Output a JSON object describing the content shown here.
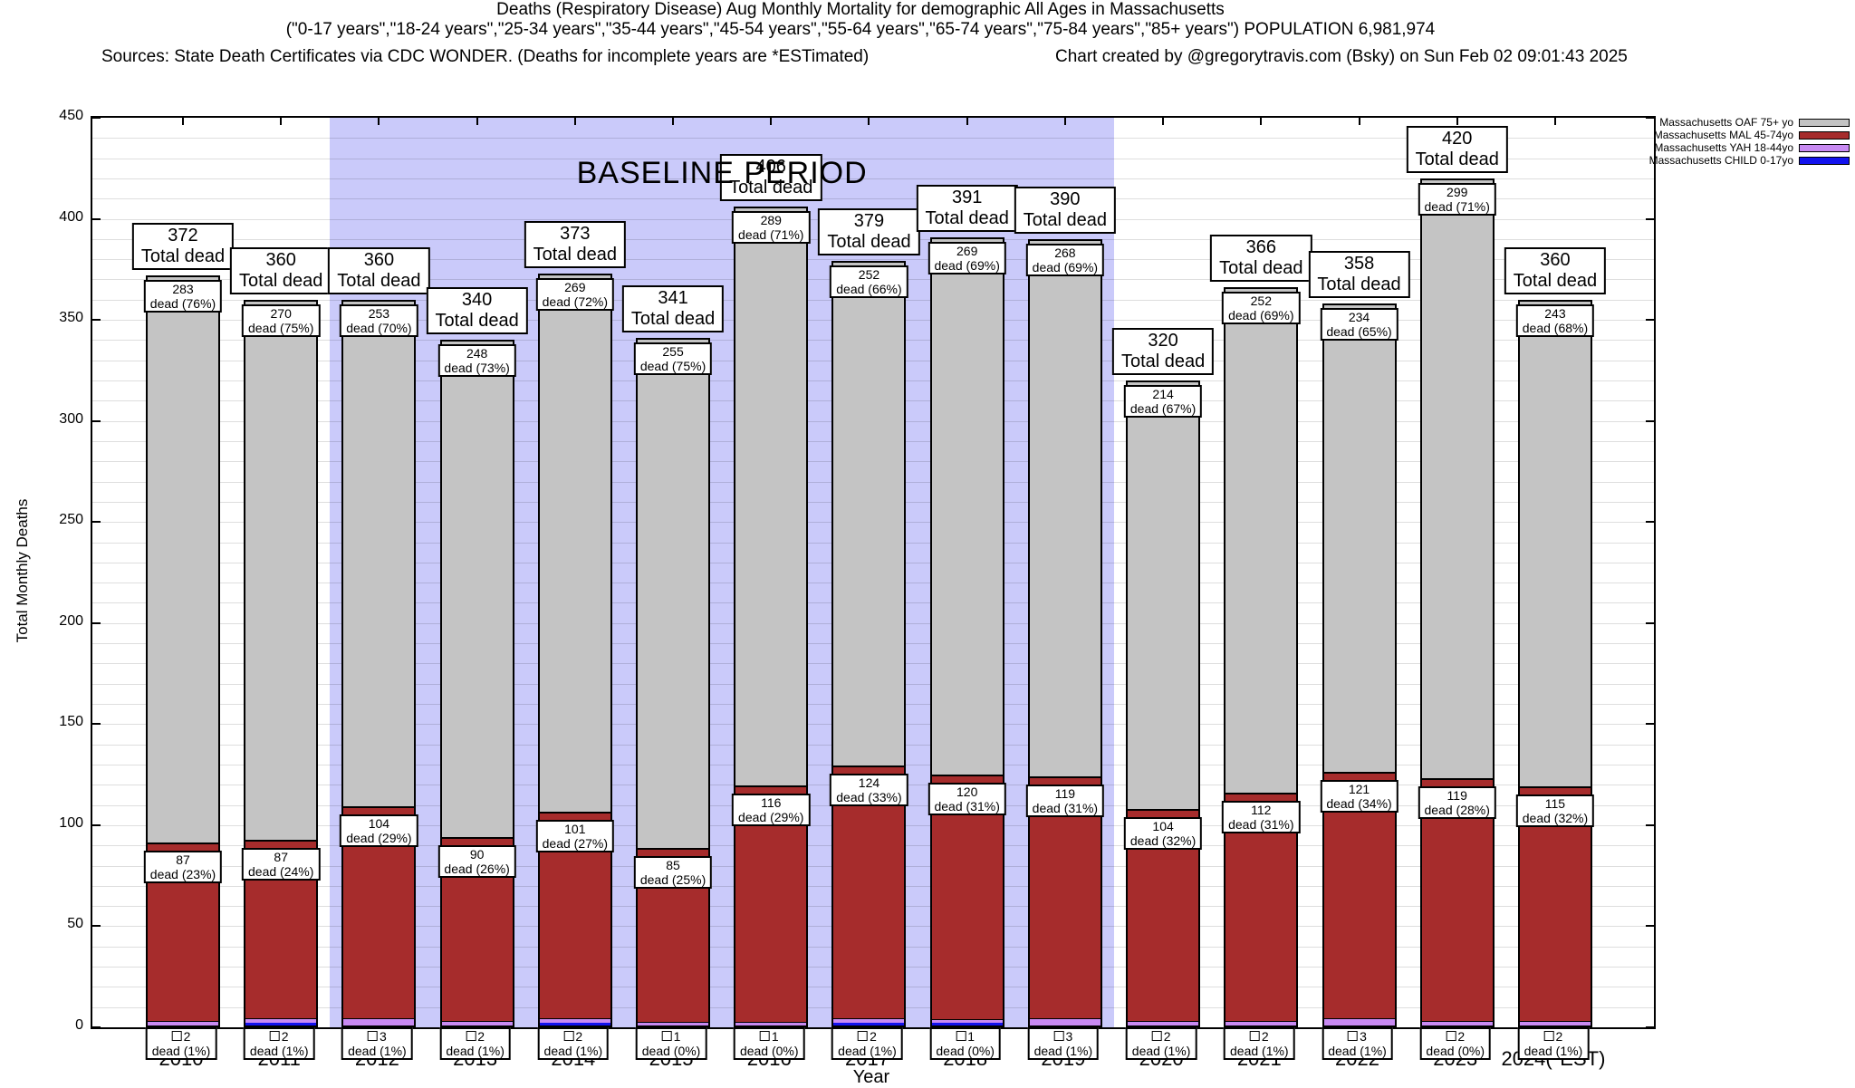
{
  "title": {
    "line1": "Deaths (Respiratory Disease) Aug Monthly Mortality for demographic All Ages in Massachusetts",
    "line2": "(\"0-17 years\",\"18-24 years\",\"25-34 years\",\"35-44 years\",\"45-54 years\",\"55-64 years\",\"65-74 years\",\"75-84 years\",\"85+ years\") POPULATION 6,981,974",
    "line3_sources": "Sources: State Death Certificates via CDC WONDER. (Deaths for incomplete years are *ESTimated)",
    "line3_credit": "Chart created by @gregorytravis.com (Bsky) on Sun Feb 02 09:01:43 2025"
  },
  "axes": {
    "ylabel": "Total Monthly Deaths",
    "xlabel": "Year",
    "ymin": 0,
    "ymax": 450,
    "ytick_step": 50,
    "grid_step": 10
  },
  "baseline": {
    "label": "BASELINE PERIOD",
    "start_category": "2012",
    "end_category": "2019",
    "color": "#cacafa"
  },
  "legend": {
    "items": [
      {
        "label": "Massachusetts OAF 75+ yo",
        "color": "#c4c4c4"
      },
      {
        "label": "Massachusetts MAL 45-74yo",
        "color": "#a62c2c"
      },
      {
        "label": "Massachusetts YAH 18-44yo",
        "color": "#c88af2"
      },
      {
        "label": "Massachusetts CHILD 0-17yo",
        "color": "#1212ee"
      }
    ]
  },
  "chart_data": {
    "type": "bar",
    "stacked": true,
    "title": "Deaths (Respiratory Disease) Aug Monthly Mortality for demographic All Ages in Massachusetts",
    "xlabel": "Year",
    "ylabel": "Total Monthly Deaths",
    "ylim": [
      0,
      450
    ],
    "grid": true,
    "legend_position": "top-right",
    "categories": [
      "2010",
      "2011",
      "2012",
      "2013",
      "2014",
      "2015",
      "2016",
      "2017",
      "2018",
      "2019",
      "2020",
      "2021",
      "2022",
      "2023",
      "2024(*EST)"
    ],
    "series": [
      {
        "name": "Massachusetts CHILD 0-17yo",
        "color": "#1212ee",
        "values": [
          0,
          1,
          0,
          0,
          1,
          0,
          0,
          1,
          1,
          0,
          0,
          0,
          0,
          0,
          0
        ]
      },
      {
        "name": "Massachusetts YAH 18-44yo",
        "color": "#c88af2",
        "values": [
          2,
          2,
          3,
          2,
          2,
          1,
          1,
          2,
          1,
          3,
          2,
          2,
          3,
          2,
          2
        ],
        "pct_labels": [
          "1%",
          "1%",
          "1%",
          "1%",
          "1%",
          "0%",
          "0%",
          "1%",
          "0%",
          "1%",
          "1%",
          "1%",
          "1%",
          "0%",
          "1%"
        ]
      },
      {
        "name": "Massachusetts MAL 45-74yo",
        "color": "#a62c2c",
        "values": [
          87,
          87,
          104,
          90,
          101,
          85,
          116,
          124,
          120,
          119,
          104,
          112,
          121,
          119,
          115
        ],
        "pct_labels": [
          "23%",
          "24%",
          "29%",
          "26%",
          "27%",
          "25%",
          "29%",
          "33%",
          "31%",
          "31%",
          "32%",
          "31%",
          "34%",
          "28%",
          "32%"
        ]
      },
      {
        "name": "Massachusetts OAF 75+ yo",
        "color": "#c4c4c4",
        "values": [
          283,
          270,
          253,
          248,
          269,
          255,
          289,
          252,
          269,
          268,
          214,
          252,
          234,
          299,
          243
        ],
        "pct_labels": [
          "76%",
          "75%",
          "70%",
          "73%",
          "72%",
          "75%",
          "71%",
          "66%",
          "69%",
          "69%",
          "67%",
          "69%",
          "65%",
          "71%",
          "68%"
        ]
      }
    ],
    "totals": [
      372,
      360,
      360,
      340,
      373,
      341,
      406,
      379,
      391,
      390,
      320,
      366,
      358,
      420,
      360
    ],
    "total_label": "Total dead",
    "dead_label": "dead",
    "baseline_period": {
      "label": "BASELINE PERIOD",
      "from": "2012",
      "to": "2019"
    }
  }
}
